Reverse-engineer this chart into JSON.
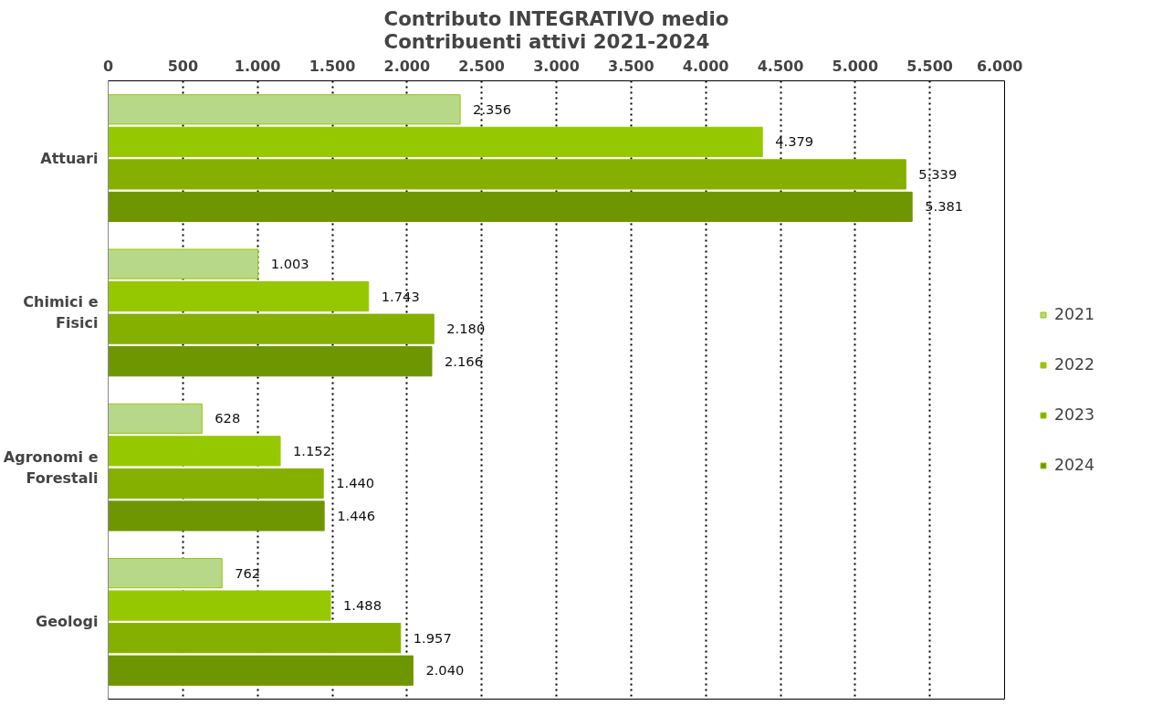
{
  "chart_data": {
    "type": "bar",
    "orientation": "horizontal",
    "title": "Contributo INTEGRATIVO medio\nContribuenti attivi 2021-2024",
    "categories": [
      "Attuari",
      "Chimici e Fisici",
      "Agronomi e Forestali",
      "Geologi"
    ],
    "series": [
      {
        "name": "2021",
        "color": "#b7d888",
        "values": [
          2356,
          1003,
          628,
          762
        ],
        "value_labels": [
          "2.356",
          "1.003",
          "628",
          "762"
        ]
      },
      {
        "name": "2022",
        "color": "#96c800",
        "values": [
          4379,
          1743,
          1152,
          1488
        ],
        "value_labels": [
          "4.379",
          "1.743",
          "1.152",
          "1.488"
        ]
      },
      {
        "name": "2023",
        "color": "#86b000",
        "values": [
          5339,
          2180,
          1440,
          1957
        ],
        "value_labels": [
          "5.339",
          "2.180",
          "1.440",
          "1.957"
        ]
      },
      {
        "name": "2024",
        "color": "#6e9600",
        "values": [
          5381,
          2166,
          1446,
          2040
        ],
        "value_labels": [
          "5.381",
          "2.166",
          "1.446",
          "2.040"
        ]
      }
    ],
    "xlim": [
      0,
      6000
    ],
    "xticks": [
      0,
      500,
      {
        "value": 1000,
        "label": "1.000"
      },
      {
        "value": 1500,
        "label": "1.500"
      },
      {
        "value": 2000,
        "label": "2.000"
      },
      {
        "value": 2500,
        "label": "2.500"
      },
      {
        "value": 3000,
        "label": "3.000"
      },
      {
        "value": 3500,
        "label": "3.500"
      },
      {
        "value": 4000,
        "label": "4.000"
      },
      {
        "value": 4500,
        "label": "4.500"
      },
      {
        "value": 5000,
        "label": "5.000"
      },
      {
        "value": 5500,
        "label": "5.500"
      },
      {
        "value": 6000,
        "label": "6.000"
      }
    ],
    "grid": "x",
    "legend": "right"
  }
}
